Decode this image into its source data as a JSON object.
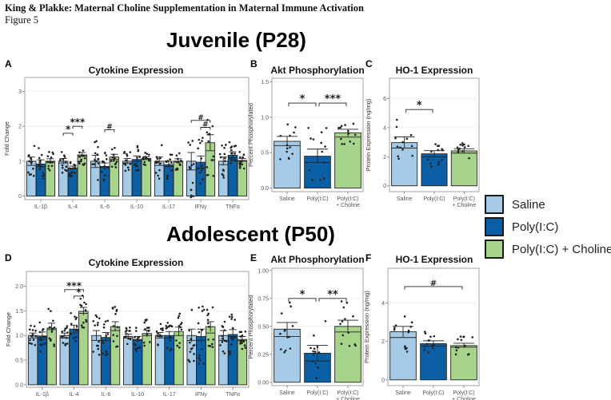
{
  "header": {
    "title": "King & Plakke: Maternal Choline Supplementation in Maternal Immune Activation",
    "figure": "Figure 5"
  },
  "sections": {
    "juvenile": "Juvenile (P28)",
    "adolescent": "Adolescent (P50)"
  },
  "colors": {
    "saline": "#a6cbe6",
    "polyic": "#0b5fa5",
    "choline": "#a8d38a"
  },
  "legend": [
    {
      "name": "Saline",
      "color": "#a6cbe6"
    },
    {
      "name": "Poly(I:C)",
      "color": "#0b5fa5"
    },
    {
      "name": "Poly(I:C) + Choline",
      "color": "#a8d38a"
    }
  ],
  "chart_data": [
    {
      "panel": "A",
      "type": "bar",
      "title": "Cytokine Expression",
      "xlabel": "",
      "ylabel": "Fold Change",
      "ylim": [
        -0.1,
        3.4
      ],
      "yticks": [
        0,
        1,
        2,
        3
      ],
      "ytick_labels": [
        "0",
        "1",
        "2",
        "3"
      ],
      "grid": true,
      "categories": [
        "IL-1β",
        "IL-4",
        "IL-6",
        "IL-10",
        "IL-17",
        "IFNγ",
        "TNFα"
      ],
      "series": [
        {
          "name": "Saline",
          "values": [
            1.0,
            1.0,
            1.0,
            1.0,
            1.0,
            1.0,
            1.0
          ],
          "sem": [
            0.12,
            0.08,
            0.17,
            0.08,
            0.12,
            0.25,
            0.12
          ],
          "median": [
            0.88,
            0.95,
            0.82,
            0.95,
            0.88,
            0.75,
            0.9
          ]
        },
        {
          "name": "Poly(I:C)",
          "values": [
            0.92,
            0.8,
            0.85,
            1.05,
            0.9,
            0.97,
            1.17
          ],
          "sem": [
            0.12,
            0.06,
            0.1,
            0.1,
            0.1,
            0.18,
            0.1
          ],
          "median": [
            0.85,
            0.78,
            0.82,
            1.0,
            0.85,
            0.8,
            1.1
          ]
        },
        {
          "name": "Poly(I:C) + Choline",
          "values": [
            1.0,
            1.18,
            1.12,
            1.08,
            1.0,
            1.53,
            1.02
          ],
          "sem": [
            0.07,
            0.07,
            0.08,
            0.05,
            0.07,
            0.23,
            0.06
          ],
          "median": [
            0.98,
            1.15,
            1.05,
            1.05,
            0.98,
            1.3,
            1.0
          ]
        }
      ],
      "annotations": [
        {
          "category": "IL-4",
          "from": "Saline",
          "to": "Poly(I:C)",
          "label": "*",
          "y": 1.8
        },
        {
          "category": "IL-4",
          "from": "Poly(I:C)",
          "to": "Poly(I:C) + Choline",
          "label": "***",
          "y": 2.0
        },
        {
          "category": "IL-6",
          "from": "Poly(I:C)",
          "to": "Poly(I:C) + Choline",
          "label": "#",
          "y": 1.9
        },
        {
          "category": "IFNγ",
          "from": "Saline",
          "to": "Poly(I:C) + Choline",
          "label": "#",
          "y": 2.17
        },
        {
          "category": "IFNγ",
          "from": "Poly(I:C)",
          "to": "Poly(I:C) + Choline",
          "label": "#",
          "y": 1.97
        }
      ]
    },
    {
      "panel": "B",
      "type": "bar",
      "title": "Akt Phosphorylation",
      "xlabel": "",
      "ylabel": "Percent Phosphorylated",
      "ylim": [
        -0.05,
        1.55
      ],
      "yticks": [
        0,
        0.5,
        1.0,
        1.5
      ],
      "ytick_labels": [
        "0.0",
        "0.5",
        "1.0",
        "1.5"
      ],
      "grid": true,
      "categories": [
        "Saline",
        "Poly(I:C)",
        "Poly(I:C)\n+ Choline"
      ],
      "values": [
        0.66,
        0.45,
        0.78
      ],
      "sem": [
        0.07,
        0.1,
        0.05
      ],
      "median": [
        0.6,
        0.36,
        0.72
      ],
      "annotations": [
        {
          "from": 0,
          "to": 1,
          "label": "*",
          "y": 1.2
        },
        {
          "from": 1,
          "to": 2,
          "label": "***",
          "y": 1.2
        }
      ]
    },
    {
      "panel": "C",
      "type": "bar",
      "title": "HO-1 Expression",
      "xlabel": "",
      "ylabel": "Protein Expression (ng/mg)",
      "ylim": [
        -0.4,
        7.4
      ],
      "yticks": [
        0,
        2,
        4,
        6
      ],
      "ytick_labels": [
        "0",
        "2",
        "4",
        "6"
      ],
      "grid": true,
      "categories": [
        "Saline",
        "Poly(I:C)",
        "Poly(I:C)\n+ Choline"
      ],
      "values": [
        2.97,
        2.2,
        2.4
      ],
      "sem": [
        0.4,
        0.22,
        0.15
      ],
      "median": [
        2.6,
        2.0,
        2.25
      ],
      "annotations": [
        {
          "from": 0,
          "to": 1,
          "label": "*",
          "y": 5.25
        }
      ]
    },
    {
      "panel": "D",
      "type": "bar",
      "title": "Cytokine Expression",
      "xlabel": "",
      "ylabel": "Fold Change",
      "ylim": [
        -0.05,
        2.3
      ],
      "yticks": [
        0,
        0.5,
        1.0,
        1.5,
        2.0
      ],
      "ytick_labels": [
        "0.0",
        "0.5",
        "1.0",
        "1.5",
        "2.0"
      ],
      "grid": true,
      "categories": [
        "IL-1β",
        "IL-4",
        "IL-6",
        "IL-10",
        "IL-17",
        "IFNγ",
        "TNFα"
      ],
      "series": [
        {
          "name": "Saline",
          "values": [
            1.0,
            1.0,
            1.0,
            0.98,
            1.0,
            1.0,
            1.0
          ],
          "sem": [
            0.05,
            0.05,
            0.1,
            0.05,
            0.06,
            0.13,
            0.1
          ],
          "median": [
            0.95,
            0.95,
            0.9,
            0.95,
            0.95,
            0.9,
            0.9
          ]
        },
        {
          "name": "Poly(I:C)",
          "values": [
            0.99,
            1.13,
            0.96,
            0.92,
            1.0,
            0.98,
            1.02
          ],
          "sem": [
            0.08,
            0.08,
            0.1,
            0.06,
            0.08,
            0.15,
            0.1
          ],
          "median": [
            0.92,
            1.05,
            0.9,
            0.9,
            0.95,
            0.9,
            0.98
          ]
        },
        {
          "name": "Poly(I:C) + Choline",
          "values": [
            1.15,
            1.49,
            1.18,
            1.04,
            1.08,
            1.18,
            0.92
          ],
          "sem": [
            0.1,
            0.08,
            0.1,
            0.07,
            0.09,
            0.1,
            0.06
          ],
          "median": [
            1.12,
            1.45,
            1.1,
            1.0,
            1.0,
            1.05,
            0.9
          ]
        }
      ],
      "annotations": [
        {
          "category": "IL-4",
          "from": "Saline",
          "to": "Poly(I:C) + Choline",
          "label": "***",
          "y": 1.93
        },
        {
          "category": "IL-4",
          "from": "Poly(I:C)",
          "to": "Poly(I:C) + Choline",
          "label": "*",
          "y": 1.8
        }
      ]
    },
    {
      "panel": "E",
      "type": "bar",
      "title": "Akt Phosphorylation",
      "xlabel": "",
      "ylabel": "Percent Phosphorylated",
      "ylim": [
        -0.03,
        1.02
      ],
      "yticks": [
        0,
        0.25,
        0.5,
        0.75,
        1.0
      ],
      "ytick_labels": [
        "0.00",
        "0.25",
        "0.50",
        "0.75",
        "1.00"
      ],
      "grid": true,
      "categories": [
        "Saline",
        "Poly(I:C)",
        "Poly(I:C)\n+ Choline"
      ],
      "values": [
        0.475,
        0.26,
        0.5
      ],
      "sem": [
        0.06,
        0.07,
        0.055
      ],
      "median": [
        0.41,
        0.19,
        0.45
      ],
      "annotations": [
        {
          "from": 0,
          "to": 1,
          "label": "*",
          "y": 0.75
        },
        {
          "from": 1,
          "to": 2,
          "label": "**",
          "y": 0.75
        }
      ]
    },
    {
      "panel": "F",
      "type": "bar",
      "title": "HO-1 Expression",
      "xlabel": "",
      "ylabel": "Protein Expression (ng/mg)",
      "ylim": [
        -0.3,
        5.8
      ],
      "yticks": [
        0,
        2,
        4
      ],
      "ytick_labels": [
        "0",
        "2",
        "4"
      ],
      "grid": true,
      "categories": [
        "Saline",
        "Poly(I:C)",
        "Poly(I:C)\n+ Choline"
      ],
      "values": [
        2.5,
        1.88,
        1.78
      ],
      "sem": [
        0.28,
        0.15,
        0.12
      ],
      "median": [
        2.2,
        1.75,
        1.7
      ],
      "annotations": [
        {
          "from": 0,
          "to": 2,
          "label": "#",
          "y": 4.85
        }
      ]
    }
  ]
}
